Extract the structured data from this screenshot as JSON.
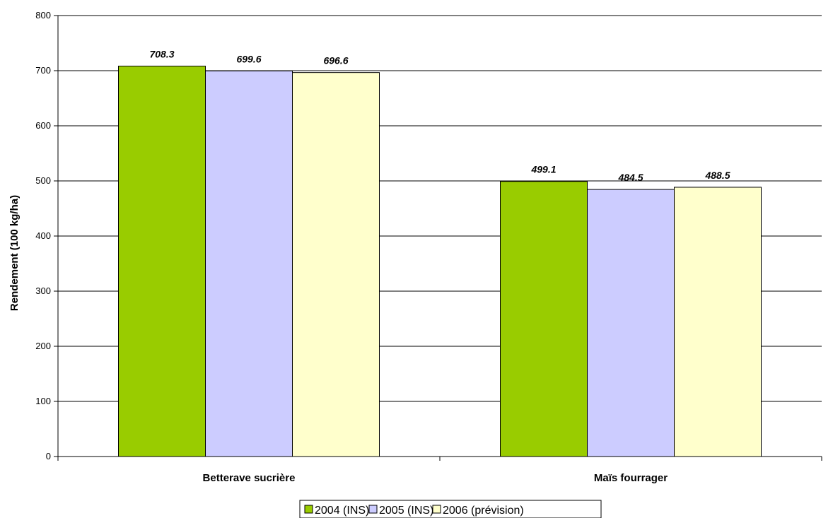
{
  "chart_data": {
    "type": "bar",
    "title": "",
    "xlabel": "",
    "ylabel": "Rendement (100 kg/ha)",
    "ylim": [
      0,
      800
    ],
    "yticks": [
      0,
      100,
      200,
      300,
      400,
      500,
      600,
      700,
      800
    ],
    "grid": true,
    "legend_position": "bottom",
    "categories": [
      "Betterave sucrière",
      "Maïs fourrager"
    ],
    "series": [
      {
        "name": "2004 (INS)",
        "color": "#99cc00",
        "values": [
          708.3,
          499.1
        ],
        "labels": [
          "708.3",
          "499.1"
        ]
      },
      {
        "name": "2005 (INS)",
        "color": "#ccccff",
        "values": [
          699.6,
          484.5
        ],
        "labels": [
          "699.6",
          "484.5"
        ]
      },
      {
        "name": "2006 (prévision)",
        "color": "#ffffcc",
        "values": [
          696.6,
          488.5
        ],
        "labels": [
          "696.6",
          "488.5"
        ]
      }
    ]
  }
}
